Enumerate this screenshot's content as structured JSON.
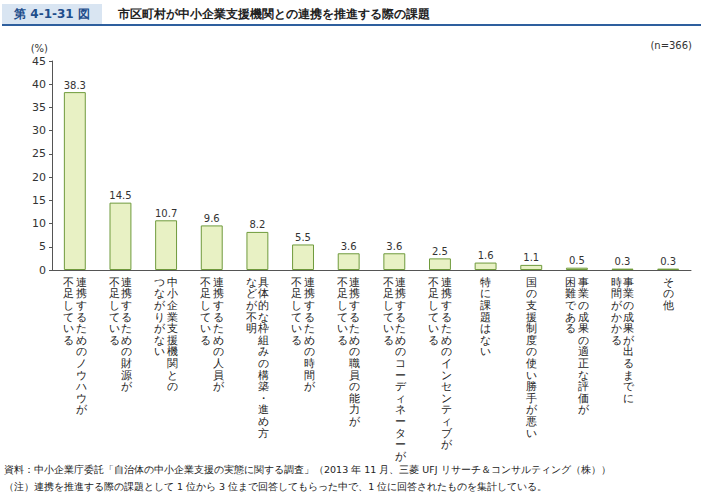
{
  "chart_data": {
    "type": "bar",
    "figure_label": "第 4-1-31 図",
    "title": "市区町村が中小企業支援機関との連携を推進する際の課題",
    "ylabel": "(%)",
    "annotations": [
      "(n=366)",
      "資料：中小企業庁委託「自治体の中小企業支援の実態に関する調査」（2013 年 11 月、三菱 UFJ リサーチ＆コンサルティング（株））",
      "（注）連携を推進する際の課題として 1 位から 3 位まで回答してもらった中で、1 位に回答されたものを集計している。"
    ],
    "categories": [
      "連携するためのノウハウが\n不足している",
      "連携するための財源が\n不足している",
      "中小企業支援機関との\nつながりがない",
      "連携するための人員が\n不足している",
      "具体的な枠組みの構築・進め方\nなどが不明",
      "連携するための時間が\n不足している",
      "連携するための職員の能力が\n不足している",
      "連携するためのコーディネーターが\n不足している",
      "連携するためのインセンティブが\n不足している",
      "特に課題はない",
      "国の支援制度の使い勝手が悪い",
      "事業の成果の適正な評価が\n困難である",
      "事業の成果が出るまでに\n時間がかかる",
      "その他"
    ],
    "values": [
      38.3,
      14.5,
      10.7,
      9.6,
      8.2,
      5.5,
      3.6,
      3.6,
      2.5,
      1.6,
      1.1,
      0.5,
      0.3,
      0.3
    ],
    "color": "#e8f1c4",
    "ylim": [
      0,
      45
    ],
    "yticks": [
      0,
      5,
      10,
      15,
      20,
      25,
      30,
      35,
      40,
      45
    ],
    "grid": false,
    "data_labels": true
  }
}
